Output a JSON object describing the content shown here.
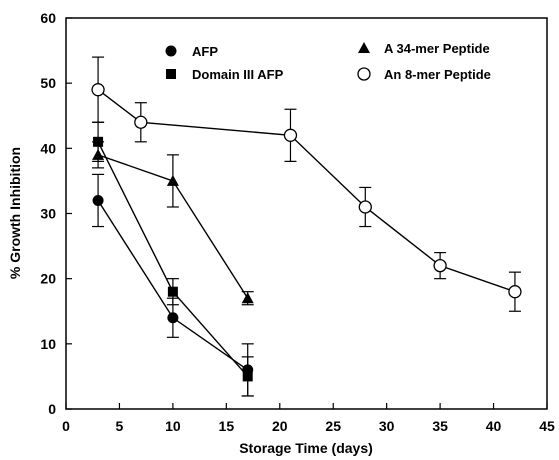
{
  "chart_data": {
    "type": "line",
    "xlabel": "Storage Time (days)",
    "ylabel": "% Growth Inhibition",
    "xlim": [
      0,
      45
    ],
    "ylim": [
      0,
      60
    ],
    "xticks": [
      0,
      5,
      10,
      15,
      20,
      25,
      30,
      35,
      40,
      45
    ],
    "yticks": [
      0,
      10,
      20,
      30,
      40,
      50,
      60
    ],
    "grid": false,
    "legend_position": "top",
    "series": [
      {
        "name": "AFP",
        "marker": "filled-circle",
        "x": [
          3,
          10,
          17
        ],
        "y": [
          32,
          14,
          6
        ],
        "err": [
          4,
          3,
          4
        ]
      },
      {
        "name": "Domain III AFP",
        "marker": "filled-square",
        "x": [
          3,
          10,
          17
        ],
        "y": [
          41,
          18,
          5
        ],
        "err": [
          3,
          2,
          3
        ]
      },
      {
        "name": "A 34-mer Peptide",
        "marker": "filled-triangle",
        "x": [
          3,
          10,
          17
        ],
        "y": [
          39,
          35,
          17
        ],
        "err": [
          2,
          4,
          1
        ]
      },
      {
        "name": "An 8-mer Peptide",
        "marker": "open-circle",
        "x": [
          3,
          7,
          21,
          28,
          35,
          42
        ],
        "y": [
          49,
          44,
          42,
          31,
          22,
          18
        ],
        "err": [
          5,
          3,
          4,
          3,
          2,
          3
        ]
      }
    ]
  }
}
